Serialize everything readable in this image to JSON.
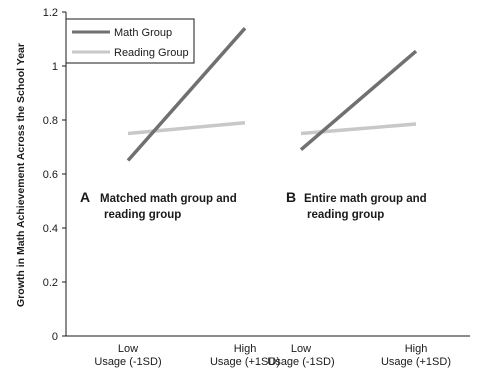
{
  "chart_data": {
    "type": "line",
    "ylabel": "Growth in Math Achievement Across the School Year",
    "ylim": [
      0,
      1.2
    ],
    "yticks": [
      "0",
      "0.2",
      "0.4",
      "0.6",
      "0.8",
      "1",
      "1.2"
    ],
    "legend": {
      "placement": "top-left",
      "entries": [
        "Math Group",
        "Reading Group"
      ]
    },
    "colors": {
      "math": "#707070",
      "reading": "#c8c8c8",
      "axis": "#1a1a1a"
    },
    "panels": [
      {
        "letter": "A",
        "caption": [
          "Matched math group and",
          "reading group"
        ],
        "categories": [
          [
            "Low",
            "Usage (-1SD)"
          ],
          [
            "High",
            "Usage (+1SD)"
          ]
        ],
        "series": [
          {
            "name": "Math Group",
            "values": [
              0.65,
              1.14
            ]
          },
          {
            "name": "Reading Group",
            "values": [
              0.75,
              0.79
            ]
          }
        ]
      },
      {
        "letter": "B",
        "caption": [
          "Entire math group and",
          "reading group"
        ],
        "categories": [
          [
            "Low",
            "Usage (-1SD)"
          ],
          [
            "High",
            "Usage (+1SD)"
          ]
        ],
        "series": [
          {
            "name": "Math Group",
            "values": [
              0.69,
              1.055
            ]
          },
          {
            "name": "Reading Group",
            "values": [
              0.75,
              0.785
            ]
          }
        ]
      }
    ]
  }
}
